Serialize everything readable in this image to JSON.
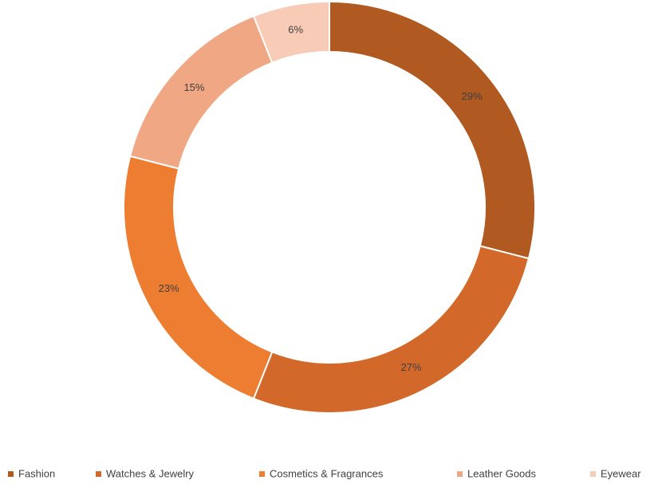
{
  "chart_data": {
    "type": "donut",
    "categories": [
      "Fashion",
      "Watches & Jewelry",
      "Cosmetics & Fragrances",
      "Leather Goods",
      "Eyewear"
    ],
    "values": [
      29,
      27,
      23,
      15,
      6
    ],
    "value_labels": [
      "29%",
      "27%",
      "23%",
      "15%",
      "6%"
    ],
    "colors": [
      "#b05a21",
      "#d2692a",
      "#ed7d31",
      "#f0a783",
      "#f7cbb5"
    ],
    "legend": "bottom"
  }
}
